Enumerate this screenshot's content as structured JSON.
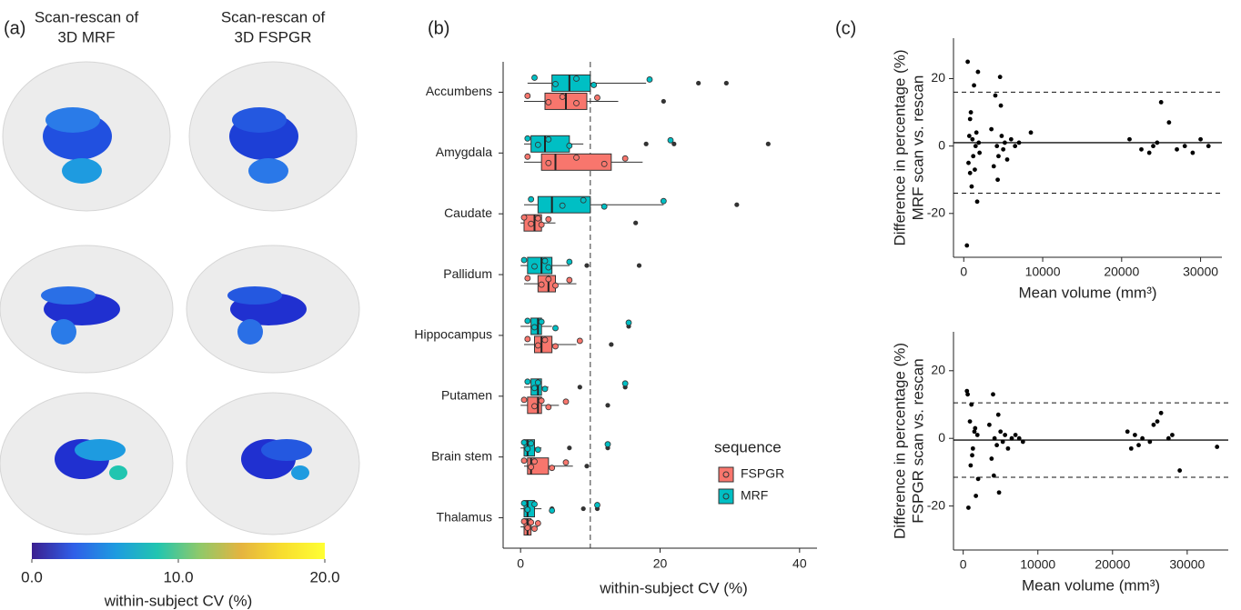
{
  "chart_data": [
    {
      "type": "colorbar",
      "panel_label": "(a)",
      "column_titles": [
        [
          "Scan-rescan of",
          "3D MRF"
        ],
        [
          "Scan-rescan of",
          "3D FSPGR"
        ]
      ],
      "range": [
        0,
        20
      ],
      "ticks": [
        {
          "value": 0,
          "label": "0.0"
        },
        {
          "value": 10,
          "label": "10.0"
        },
        {
          "value": 20,
          "label": "20.0"
        }
      ],
      "label": "within-subject CV (%)",
      "colormap": [
        "#3b1f8f",
        "#2f5fe8",
        "#1e9be0",
        "#21c5b0",
        "#8ec96a",
        "#e5b43f",
        "#f8de2f",
        "#ffff33"
      ]
    },
    {
      "type": "box",
      "panel_label": "(b)",
      "xlabel": "within-subject CV (%)",
      "categories": [
        "Accumbens",
        "Amygdala",
        "Caudate",
        "Pallidum",
        "Hippocampus",
        "Putamen",
        "Brain stem",
        "Thalamus"
      ],
      "xlim": [
        -2.5,
        42.5
      ],
      "xticks": [
        0,
        20,
        40
      ],
      "reference_line": 10,
      "legend_title": "sequence",
      "outlier_color": "#333333",
      "series": [
        {
          "name": "FSPGR",
          "color": "#F8766D",
          "boxes": [
            {
              "low": 0.5,
              "q1": 3.5,
              "median": 6.5,
              "q3": 9.5,
              "high": 14,
              "outliers": [
                20.5
              ],
              "points": [
                1,
                4,
                6,
                8,
                11
              ]
            },
            {
              "low": 0.5,
              "q1": 3,
              "median": 5,
              "q3": 13,
              "high": 17.5,
              "outliers": [],
              "points": [
                1,
                4,
                8,
                12,
                15
              ]
            },
            {
              "low": 0,
              "q1": 0.5,
              "median": 2,
              "q3": 3,
              "high": 5,
              "outliers": [
                16.5
              ],
              "points": [
                0.5,
                1.5,
                2.5,
                3,
                4
              ]
            },
            {
              "low": 0.5,
              "q1": 2.5,
              "median": 4,
              "q3": 5,
              "high": 8,
              "outliers": [],
              "points": [
                1,
                3,
                4,
                5,
                7
              ]
            },
            {
              "low": 0.5,
              "q1": 2,
              "median": 3,
              "q3": 4.5,
              "high": 8,
              "outliers": [
                13
              ],
              "points": [
                1,
                2.5,
                3.5,
                5,
                8.5
              ]
            },
            {
              "low": 0,
              "q1": 1,
              "median": 2.5,
              "q3": 3,
              "high": 5.5,
              "outliers": [
                12.5
              ],
              "points": [
                0.5,
                2,
                3,
                4,
                6.5
              ]
            },
            {
              "low": 0.5,
              "q1": 1,
              "median": 1.5,
              "q3": 4,
              "high": 7.5,
              "outliers": [
                9.5
              ],
              "points": [
                0.5,
                1.5,
                2,
                4.5,
                6.5
              ]
            },
            {
              "low": 0,
              "q1": 0.5,
              "median": 1,
              "q3": 1.5,
              "high": 2.5,
              "outliers": [],
              "points": [
                0.5,
                1,
                1.5,
                2,
                2.5
              ]
            }
          ]
        },
        {
          "name": "MRF",
          "color": "#00BFC4",
          "boxes": [
            {
              "low": 1,
              "q1": 4.5,
              "median": 7,
              "q3": 10,
              "high": 18,
              "outliers": [
                25.5,
                29.5
              ],
              "points": [
                2,
                5,
                8,
                10.5,
                18.5
              ]
            },
            {
              "low": 0.5,
              "q1": 1.5,
              "median": 3.5,
              "q3": 7,
              "high": 9,
              "outliers": [
                18,
                22,
                35.5
              ],
              "points": [
                1,
                2.5,
                4,
                7,
                21.5
              ]
            },
            {
              "low": 0.5,
              "q1": 2.5,
              "median": 4.5,
              "q3": 10,
              "high": 20.5,
              "outliers": [
                31
              ],
              "points": [
                1.5,
                6,
                9,
                12,
                20.5
              ]
            },
            {
              "low": 0,
              "q1": 1,
              "median": 3,
              "q3": 4.5,
              "high": 7,
              "outliers": [
                9.5,
                17
              ],
              "points": [
                0.5,
                2,
                3.5,
                4,
                7
              ]
            },
            {
              "low": 0,
              "q1": 1.5,
              "median": 2.5,
              "q3": 3,
              "high": 4.5,
              "outliers": [
                15.5
              ],
              "points": [
                1,
                2,
                3,
                5,
                15.5
              ]
            },
            {
              "low": 0.5,
              "q1": 1.5,
              "median": 2.5,
              "q3": 3,
              "high": 4,
              "outliers": [
                8.5,
                15
              ],
              "points": [
                1,
                2,
                2.5,
                3.5,
                15
              ]
            },
            {
              "low": 0,
              "q1": 0.5,
              "median": 1,
              "q3": 2,
              "high": 3,
              "outliers": [
                7,
                12.5
              ],
              "points": [
                0.5,
                1,
                1.5,
                2.5,
                12.5
              ]
            },
            {
              "low": 0,
              "q1": 0.5,
              "median": 1,
              "q3": 2,
              "high": 3,
              "outliers": [
                4.5,
                9,
                11
              ],
              "points": [
                0.5,
                1,
                2,
                4.5,
                11
              ]
            }
          ]
        }
      ]
    },
    {
      "type": "scatter",
      "panel_label": "(c)",
      "ylabel": [
        "Difference in percentage (%)",
        "MRF scan vs. rescan"
      ],
      "xlabel": "Mean volume (mm³)",
      "xlim": [
        -1300,
        32700
      ],
      "ylim": [
        -33,
        32
      ],
      "xticks": [
        0,
        10000,
        20000,
        30000
      ],
      "yticks": [
        -20,
        0,
        20
      ],
      "color": "#000000",
      "mean_line": 1,
      "limits": [
        16,
        -14
      ],
      "x": [
        500,
        600,
        700,
        800,
        900,
        1000,
        1100,
        1200,
        1300,
        1500,
        1600,
        1700,
        1800,
        1900,
        2000,
        400,
        800,
        1400,
        3500,
        3800,
        4000,
        4200,
        4400,
        4600,
        4800,
        5000,
        5200,
        5500,
        6000,
        6500,
        7000,
        8500,
        4300,
        4700,
        21000,
        22500,
        23500,
        24000,
        24500,
        25000,
        26000,
        27000,
        28000,
        29000,
        30000,
        31000
      ],
      "values": [
        25,
        -5,
        3,
        -8,
        10,
        -12,
        2,
        -3,
        18,
        0,
        4,
        -16.5,
        22,
        1,
        -2,
        -29.5,
        8,
        -7,
        5,
        -6,
        15,
        0,
        -3,
        20.5,
        3,
        -1,
        1,
        -4,
        2,
        0,
        1,
        4,
        -10,
        12,
        2,
        -1,
        -2,
        0,
        1,
        13,
        7,
        -1,
        0,
        -2,
        2,
        0
      ]
    },
    {
      "type": "scatter",
      "ylabel": [
        "Difference in percentage (%)",
        "FSPGR scan vs. rescan"
      ],
      "xlabel": "Mean volume (mm³)",
      "xlim": [
        -1300,
        35500
      ],
      "ylim": [
        -33,
        31.5
      ],
      "xticks": [
        0,
        10000,
        20000,
        30000
      ],
      "yticks": [
        -20,
        0,
        20
      ],
      "color": "#000000",
      "mean_line": -0.5,
      "limits": [
        10.5,
        -11.5
      ],
      "x": [
        500,
        700,
        900,
        1000,
        1100,
        1300,
        1500,
        1700,
        1900,
        2000,
        600,
        1200,
        1600,
        3500,
        3800,
        4000,
        4200,
        4500,
        4800,
        5000,
        5300,
        5600,
        6000,
        6500,
        7000,
        7500,
        8000,
        4100,
        4700,
        22000,
        22500,
        23000,
        23500,
        24000,
        25000,
        25500,
        26000,
        26500,
        27500,
        28000,
        29000,
        34000
      ],
      "values": [
        14,
        -20.5,
        5,
        -8,
        10,
        -3,
        2,
        -17,
        1,
        -12,
        13,
        -5,
        3,
        4,
        -6,
        13,
        0,
        -2,
        -16,
        2,
        -1,
        1,
        -3,
        0,
        1,
        0,
        -1,
        -11,
        7,
        2,
        -3,
        1,
        -2,
        0,
        -1,
        4,
        5,
        7.5,
        0,
        1,
        -9.5,
        -2.5
      ]
    }
  ]
}
